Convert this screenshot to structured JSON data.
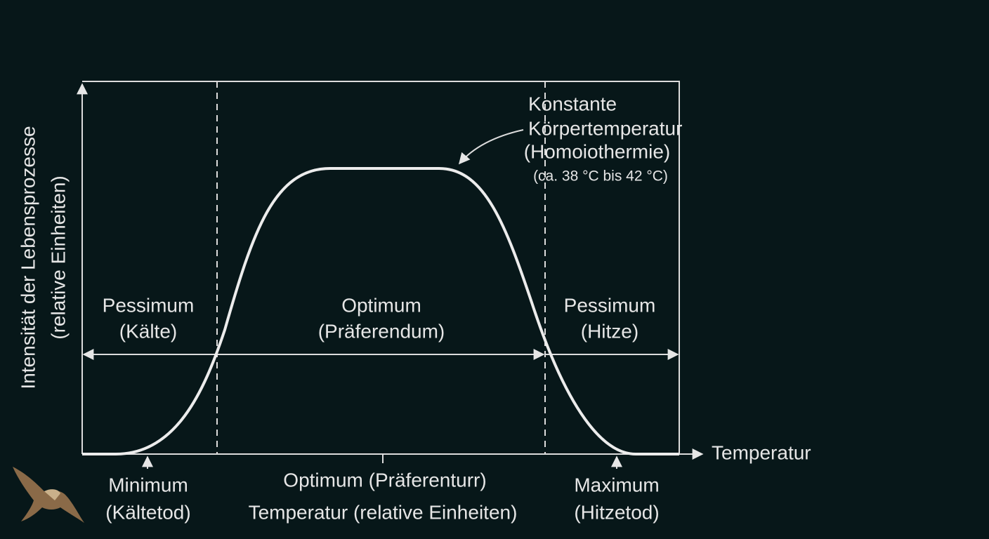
{
  "y_axis": {
    "label": [
      "Intensität der Lebensprozesse",
      "(relative Einheiten)"
    ]
  },
  "x_axis": {
    "label": "Temperatur"
  },
  "zones": [
    {
      "title": "Pessimum",
      "subtitle": "(Kälte)"
    },
    {
      "title": "Optimum",
      "subtitle": "(Präferendum)"
    },
    {
      "title": "Pessimum",
      "subtitle": "(Hitze)"
    }
  ],
  "annotation": [
    "Konstante",
    "Körpertemperatur",
    "(Homoiothermie)",
    "(ca. 38 °C bis 42 °C)"
  ],
  "markers": [
    {
      "lines": [
        "Minimum",
        "(Kältetod)"
      ]
    },
    {
      "lines": [
        "Optimum (Präferenturr)",
        "Temperatur (relative Einheiten)"
      ]
    },
    {
      "lines": [
        "Maximum",
        "(Hitzetod)"
      ]
    }
  ]
}
